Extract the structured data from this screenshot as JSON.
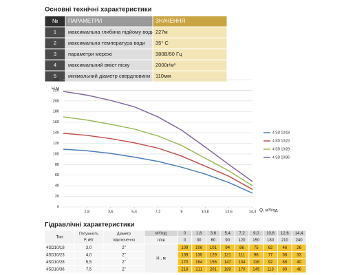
{
  "spec_section": {
    "title": "Основні технічні характеристики",
    "header": [
      "№",
      "ПАРАМЕТРИ",
      "ЗНАЧЕННЯ"
    ],
    "rows": [
      [
        "1",
        "максимальна глибина підйому води",
        "227м"
      ],
      [
        "2",
        "максимальна температура води",
        "35° С"
      ],
      [
        "3",
        "параметри мережі",
        "380В/50 Гц"
      ],
      [
        "4",
        "максимальний вміст піску",
        "2000г/м³"
      ],
      [
        "5",
        "мінімальний діаметр свердловини",
        "110мм"
      ]
    ]
  },
  "chart_data": {
    "type": "line",
    "x_label": "Q, м³/год",
    "y_label": "Н,м",
    "x": [
      0,
      1.8,
      3.6,
      5.4,
      7.2,
      9,
      10.8,
      12.6,
      14.4
    ],
    "xlim": [
      0,
      14.4
    ],
    "ylim": [
      0,
      240
    ],
    "xticks": [
      {
        "value": 1.8,
        "label": "1,8"
      },
      {
        "value": 3.6,
        "label": "3,6"
      },
      {
        "value": 5.4,
        "label": "5,4"
      },
      {
        "value": 7.2,
        "label": "7,2"
      },
      9,
      {
        "value": 10.8,
        "label": "10,8"
      },
      {
        "value": 12.6,
        "label": "12,6"
      },
      {
        "value": 14.4,
        "label": "14,4"
      }
    ],
    "yticks": [
      0,
      20,
      40,
      60,
      80,
      100,
      120,
      140,
      160,
      180,
      200,
      220,
      240
    ],
    "grid": true,
    "legend": "right",
    "series": [
      {
        "name": "4 SD 10/18",
        "color": "#4a7ebb",
        "values": [
          109,
          106,
          101,
          94,
          86,
          75,
          62,
          46,
          26
        ]
      },
      {
        "name": "4 SD 10/23",
        "color": "#c0504d",
        "values": [
          139,
          135,
          129,
          121,
          111,
          96,
          77,
          58,
          33
        ]
      },
      {
        "name": "4 SD 10/28",
        "color": "#9bbb59",
        "values": [
          170,
          164,
          156,
          147,
          134,
          116,
          92,
          68,
          40
        ]
      },
      {
        "name": "4 SD 10/36",
        "color": "#8064a2",
        "values": [
          218,
          211,
          201,
          189,
          170,
          145,
          113,
          80,
          48
        ]
      }
    ]
  },
  "hydraulic_section": {
    "title": "Гідравлічні характеристики",
    "type_header": "Тип",
    "power_header": [
      "Потужність",
      "Р, кВт"
    ],
    "diameter_header": [
      "Діаметр",
      "підключення"
    ],
    "flow_unit": "м³/год",
    "flow_values": [
      "0",
      "1,8",
      "3,6",
      "5,4",
      "7,2",
      "9,0",
      "10,8",
      "12,6",
      "14,4"
    ],
    "lpm_unit": "л/хв",
    "lpm_values": [
      "0",
      "30",
      "60",
      "90",
      "120",
      "150",
      "180",
      "210",
      "240"
    ],
    "head_unit": "Н , м",
    "rows": [
      {
        "type": "4SD10/18",
        "power": "3,0",
        "diameter": "2\"",
        "heads": [
          "109",
          "106",
          "101",
          "94",
          "86",
          "75",
          "62",
          "46",
          "26"
        ]
      },
      {
        "type": "4SD10/23",
        "power": "4,0",
        "diameter": "2\"",
        "heads": [
          "139",
          "135",
          "129",
          "121",
          "111",
          "96",
          "77",
          "58",
          "33"
        ]
      },
      {
        "type": "4SD10/28",
        "power": "5,5",
        "diameter": "2\"",
        "heads": [
          "170",
          "164",
          "156",
          "147",
          "134",
          "116",
          "92",
          "68",
          "40"
        ]
      },
      {
        "type": "4SD10/36",
        "power": "7,5",
        "diameter": "2\"",
        "heads": [
          "218",
          "211",
          "201",
          "189",
          "170",
          "145",
          "113",
          "80",
          "48"
        ]
      }
    ]
  }
}
